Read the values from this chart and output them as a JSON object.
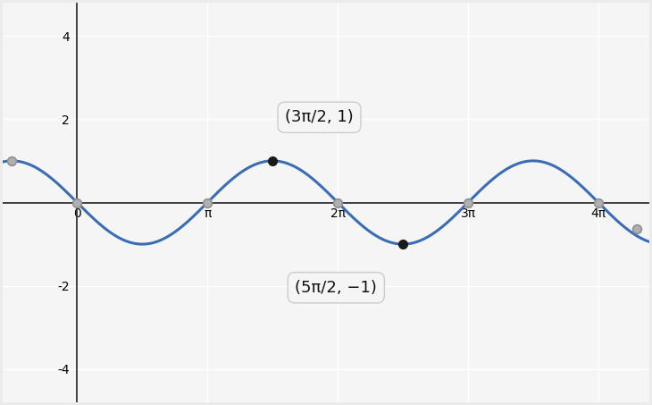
{
  "xlim": [
    -1.8,
    13.8
  ],
  "ylim": [
    -4.8,
    4.8
  ],
  "yticks": [
    -4,
    -2,
    2,
    4
  ],
  "xticks_values": [
    0,
    3.14159265,
    6.2831853,
    9.42477796,
    12.56637061
  ],
  "xticks_labels": [
    "0",
    "π",
    "2π",
    "3π",
    "4π"
  ],
  "curve_color": "#3a6db5",
  "curve_linewidth": 2.2,
  "background_color": "#ebebeb",
  "plot_bg_color": "#f5f5f5",
  "grid_color": "#ffffff",
  "grid_linewidth": 1.0,
  "point1_x": 4.71238898,
  "point1_y": 1.0,
  "point1_label": "(3π/2, 1)",
  "point2_x": 7.85398163,
  "point2_y": -1.0,
  "point2_label": "(5π/2, −1)",
  "annotation_box_color": "#f5f5f5",
  "annotation_box_edge": "#cccccc",
  "annotation_fontsize": 13,
  "x_start": -1.8,
  "x_end": 13.8,
  "gray_open_points": [
    [
      -1.5707963,
      1.0
    ],
    [
      0,
      0
    ],
    [
      3.14159265,
      0
    ],
    [
      6.2831853,
      0
    ],
    [
      9.42477796,
      0
    ],
    [
      12.56637061,
      0
    ],
    [
      13.5,
      -0.628
    ]
  ]
}
